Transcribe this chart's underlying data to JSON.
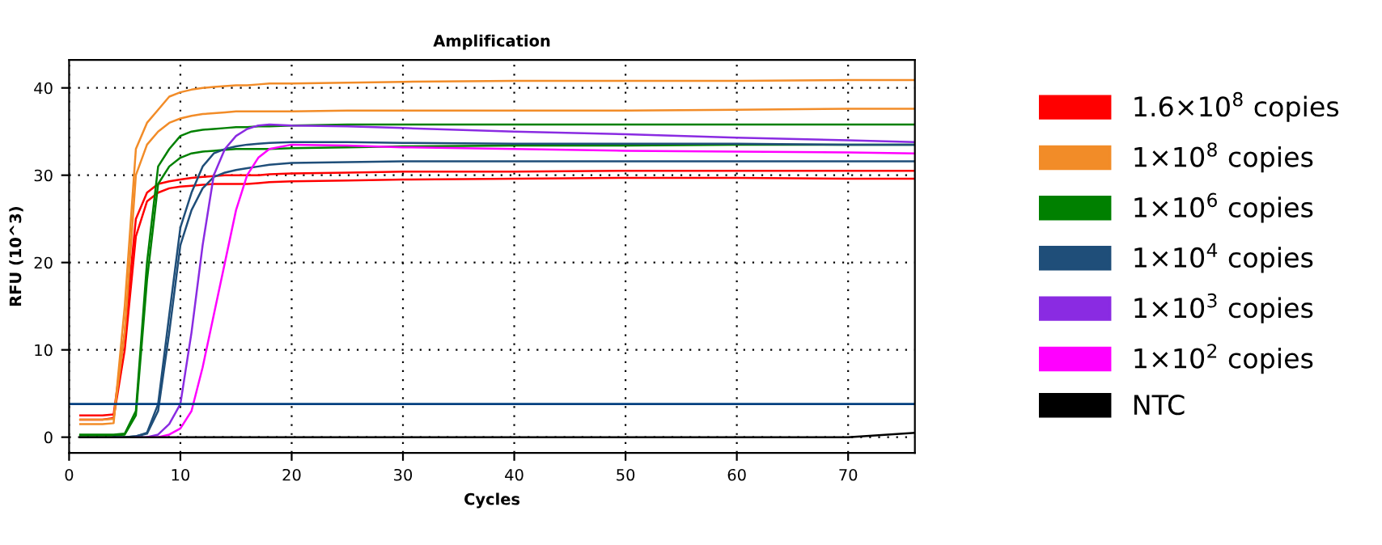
{
  "chart_data": {
    "type": "line",
    "title": "Amplification",
    "xlabel": "Cycles",
    "ylabel": "RFU (10^3)",
    "x": [
      1,
      2,
      3,
      4,
      5,
      6,
      7,
      8,
      9,
      10,
      11,
      12,
      13,
      14,
      15,
      16,
      17,
      18,
      20,
      25,
      30,
      40,
      50,
      60,
      70,
      76
    ],
    "xlim": [
      0,
      76
    ],
    "ylim": [
      -1.8,
      43.2
    ],
    "xticks": [
      0,
      10,
      20,
      30,
      40,
      50,
      60,
      70
    ],
    "yticks": [
      0,
      10,
      20,
      30,
      40
    ],
    "grid": true,
    "legend": "right",
    "marker": "none",
    "line_style": "solid",
    "ref_lines": [
      {
        "axis": "y",
        "value": 3.8,
        "color": "#003f7f"
      }
    ],
    "series": [
      {
        "name": "1.6×10$^{8}$ copies",
        "color": "#ff0000",
        "values": [
          2.5,
          2.5,
          2.5,
          2.6,
          12,
          25,
          28,
          29,
          29.3,
          29.5,
          29.7,
          29.8,
          29.9,
          30,
          30,
          30,
          30,
          30.1,
          30.2,
          30.3,
          30.4,
          30.4,
          30.5,
          30.5,
          30.5,
          30.5
        ]
      },
      {
        "color": "#ff0000",
        "values": [
          2,
          2,
          2,
          2.2,
          10,
          23,
          27,
          28,
          28.5,
          28.7,
          28.8,
          28.9,
          29,
          29,
          29,
          29,
          29.1,
          29.2,
          29.3,
          29.4,
          29.5,
          29.6,
          29.7,
          29.7,
          29.6,
          29.6
        ]
      },
      {
        "name": "1×10$^{8}$ copies",
        "color": "#f28c28",
        "values": [
          1.5,
          1.5,
          1.5,
          1.6,
          15,
          33,
          36,
          37.5,
          39,
          39.5,
          39.8,
          40,
          40.1,
          40.2,
          40.3,
          40.3,
          40.4,
          40.5,
          40.5,
          40.6,
          40.7,
          40.8,
          40.8,
          40.8,
          40.9,
          40.9
        ]
      },
      {
        "color": "#f28c28",
        "values": [
          2,
          2,
          2,
          2.1,
          12,
          30,
          33.5,
          35,
          36,
          36.5,
          36.8,
          37,
          37.1,
          37.2,
          37.3,
          37.3,
          37.3,
          37.3,
          37.3,
          37.4,
          37.4,
          37.4,
          37.4,
          37.5,
          37.6,
          37.6
        ]
      },
      {
        "name": "1×10$^{6}$ copies",
        "color": "#008000",
        "values": [
          0.3,
          0.3,
          0.3,
          0.3,
          0.4,
          3,
          20,
          31,
          33,
          34.5,
          35,
          35.2,
          35.3,
          35.4,
          35.5,
          35.5,
          35.6,
          35.6,
          35.7,
          35.8,
          35.8,
          35.8,
          35.8,
          35.8,
          35.8,
          35.8
        ]
      },
      {
        "color": "#008000",
        "values": [
          0.2,
          0.2,
          0.2,
          0.2,
          0.3,
          2.5,
          18,
          29,
          31,
          32,
          32.5,
          32.7,
          32.8,
          32.9,
          33,
          33,
          33,
          33,
          33.1,
          33.2,
          33.3,
          33.4,
          33.4,
          33.5,
          33.5,
          33.5
        ]
      },
      {
        "name": "1×10$^{4}$ copies",
        "color": "#1f4e79",
        "values": [
          null,
          null,
          null,
          0,
          0,
          0.1,
          0.5,
          3.8,
          14,
          24,
          28,
          31,
          32.5,
          33,
          33.3,
          33.5,
          33.6,
          33.7,
          33.8,
          33.8,
          33.7,
          33.6,
          33.6,
          33.6,
          33.5,
          33.5
        ]
      },
      {
        "color": "#1f4e79",
        "values": [
          null,
          null,
          null,
          0,
          0,
          0.1,
          0.4,
          3,
          12,
          22,
          26,
          28.5,
          29.8,
          30.3,
          30.6,
          30.8,
          31,
          31.2,
          31.4,
          31.5,
          31.6,
          31.6,
          31.6,
          31.6,
          31.6,
          31.6
        ]
      },
      {
        "name": "1×10$^{3}$ copies",
        "color": "#8a2be2",
        "values": [
          null,
          null,
          null,
          null,
          null,
          0,
          0,
          0.3,
          1.5,
          3.8,
          12,
          22,
          30,
          33,
          34.5,
          35.3,
          35.7,
          35.8,
          35.7,
          35.6,
          35.4,
          35,
          34.7,
          34.3,
          34,
          33.8
        ]
      },
      {
        "name": "1×10$^{2}$ copies",
        "color": "#ff00ff",
        "values": [
          null,
          null,
          null,
          null,
          null,
          null,
          0,
          0,
          0.3,
          1,
          3,
          8,
          14,
          20,
          26,
          30,
          32,
          33,
          33.5,
          33.4,
          33.2,
          33,
          32.8,
          32.7,
          32.6,
          32.5
        ]
      },
      {
        "name": "NTC",
        "color": "#000000",
        "values": [
          0,
          0,
          0,
          0,
          0,
          0,
          0,
          0,
          0,
          0,
          0,
          0,
          0,
          0,
          0,
          0,
          0,
          0,
          0,
          0,
          0,
          0,
          0,
          0,
          0,
          0.5
        ]
      }
    ]
  }
}
